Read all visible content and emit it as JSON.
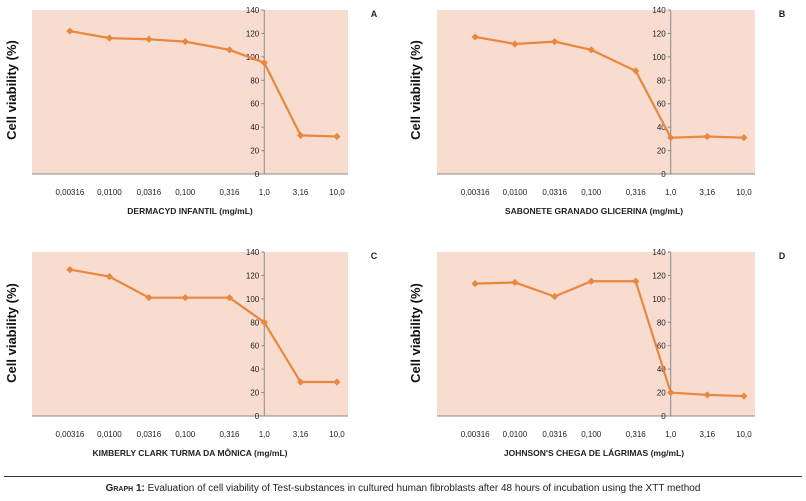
{
  "chart_data": [
    {
      "type": "line",
      "panel_letter": "A",
      "categories": [
        "0,00316",
        "0,0100",
        "0,0316",
        "0,100",
        "0,316",
        "1,0",
        "3,16",
        "10,0"
      ],
      "values": [
        122,
        116,
        115,
        113,
        106,
        95,
        33,
        32
      ],
      "xlabel": "DERMACYD INFANTIL (mg/mL)",
      "ylabel": "Cell viability (%)",
      "yticks": [
        "0",
        "20",
        "40",
        "60",
        "80",
        "100",
        "120",
        "140"
      ],
      "ylim": [
        0,
        140
      ],
      "grid": false
    },
    {
      "type": "line",
      "panel_letter": "B",
      "categories": [
        "0,00316",
        "0,0100",
        "0,0316",
        "0,100",
        "0,316",
        "1,0",
        "3,16",
        "10,0"
      ],
      "values": [
        117,
        111,
        113,
        106,
        88,
        31,
        32,
        31
      ],
      "xlabel": "SABONETE GRANADO GLICERINA (mg/mL)",
      "ylabel": "Cell viability (%)",
      "yticks": [
        "0",
        "20",
        "40",
        "60",
        "80",
        "100",
        "120",
        "140"
      ],
      "ylim": [
        0,
        140
      ],
      "grid": false
    },
    {
      "type": "line",
      "panel_letter": "C",
      "categories": [
        "0,00316",
        "0,0100",
        "0,0316",
        "0,100",
        "0,316",
        "1,0",
        "3,16",
        "10,0"
      ],
      "values": [
        125,
        119,
        101,
        101,
        101,
        80,
        29,
        29
      ],
      "xlabel": "KIMBERLY CLARK TURMA DA MÔNICA (mg/mL)",
      "ylabel": "Cell viability (%)",
      "yticks": [
        "0",
        "20",
        "40",
        "60",
        "80",
        "100",
        "120",
        "140"
      ],
      "ylim": [
        0,
        140
      ],
      "grid": false
    },
    {
      "type": "line",
      "panel_letter": "D",
      "categories": [
        "0,00316",
        "0,0100",
        "0,0316",
        "0,100",
        "0,316",
        "1,0",
        "3,16",
        "10,0"
      ],
      "values": [
        113,
        114,
        102,
        115,
        115,
        20,
        18,
        17
      ],
      "xlabel": "JOHNSON'S CHEGA DE LÁGRIMAS (mg/mL)",
      "ylabel": "Cell viability (%)",
      "yticks": [
        "0",
        "20",
        "40",
        "60",
        "80",
        "100",
        "120",
        "140"
      ],
      "ylim": [
        0,
        140
      ],
      "grid": false
    }
  ],
  "colors": {
    "plot_background": "#f9dcd0",
    "line": "#e8873d",
    "axis": "#8a8a8a",
    "text": "#222222"
  },
  "caption": {
    "lead": "Graph 1:",
    "text": " Evaluation of cell viability of Test-substances in cultured human fibroblasts after 48 hours of incubation using the XTT method"
  }
}
